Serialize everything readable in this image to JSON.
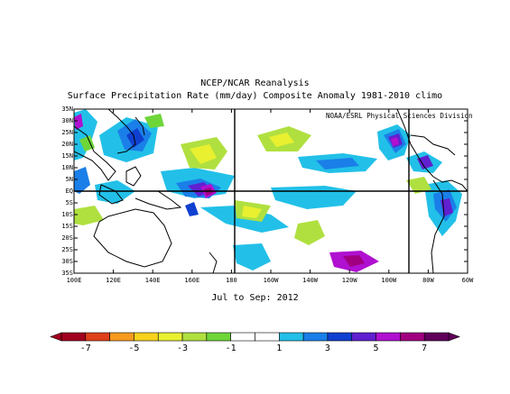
{
  "header": {
    "line1": "NCEP/NCAR Reanalysis",
    "line2": "Surface Precipitation Rate (mm/day) Composite Anomaly 1981-2010 climo"
  },
  "map": {
    "credit": "NOAA/ESRL Physical Sciences Division",
    "period": "Jul to Sep: 2012",
    "lat_labels": [
      "35N",
      "30N",
      "25N",
      "20N",
      "15N",
      "10N",
      "5N",
      "EQ",
      "5S",
      "10S",
      "15S",
      "20S",
      "25S",
      "30S",
      "35S"
    ],
    "lon_labels": [
      "100E",
      "120E",
      "140E",
      "160E",
      "180",
      "160W",
      "140W",
      "120W",
      "100W",
      "80W",
      "60W"
    ],
    "lat_range": [
      -35,
      35
    ],
    "lon_range": [
      100,
      300
    ],
    "reference_lines": {
      "equator": 0,
      "lon": [
        180,
        270
      ]
    }
  },
  "colorbar": {
    "labels": [
      "-7",
      "-5",
      "-3",
      "-1",
      "1",
      "3",
      "5",
      "7"
    ],
    "colors": [
      "#a0001e",
      "#e0401c",
      "#f79a1e",
      "#f8d21c",
      "#e8f030",
      "#b0e040",
      "#6fd63a",
      "#ffffff",
      "#ffffff",
      "#22c0e8",
      "#1a7fe8",
      "#1040d0",
      "#6020d0",
      "#b010d0",
      "#a00080",
      "#60005a"
    ]
  }
}
